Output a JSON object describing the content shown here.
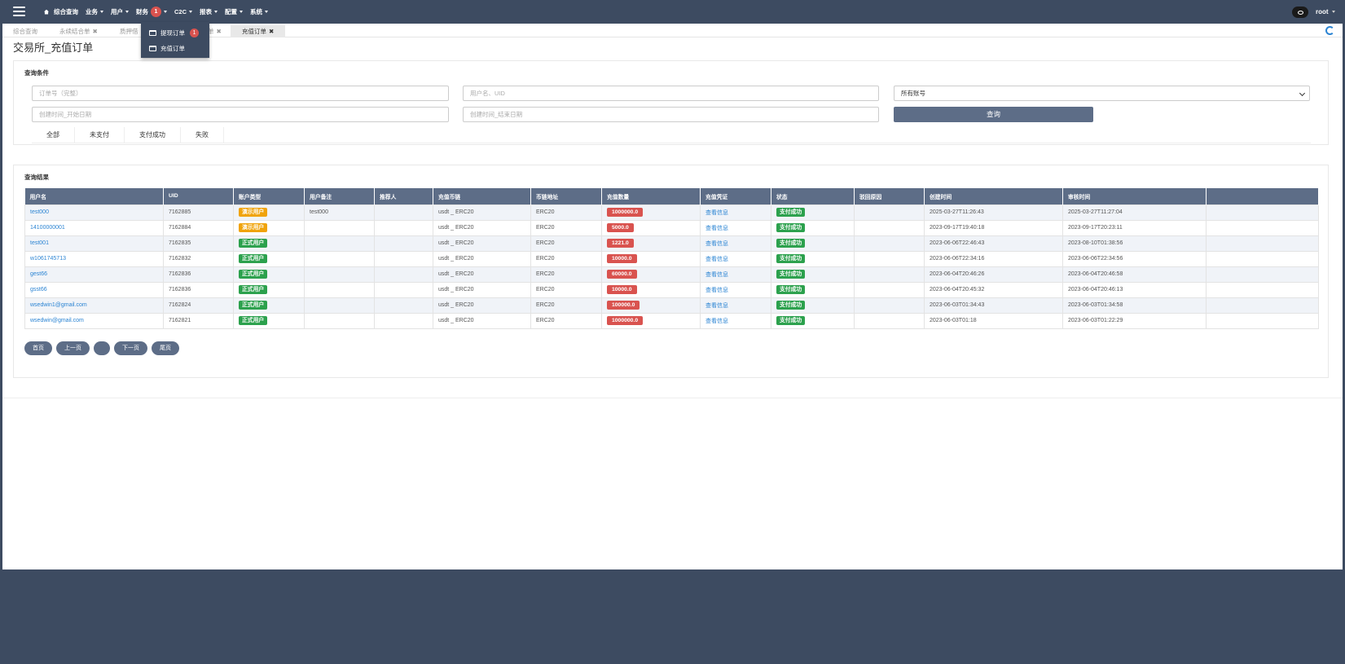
{
  "navbar": {
    "items": [
      {
        "label": "综合查询",
        "caret": false,
        "home": true
      },
      {
        "label": "业务",
        "caret": true
      },
      {
        "label": "用户",
        "caret": true
      },
      {
        "label": "财务",
        "caret": true,
        "badge": "1"
      },
      {
        "label": "C2C",
        "caret": true
      },
      {
        "label": "报表",
        "caret": true
      },
      {
        "label": "配置",
        "caret": true
      },
      {
        "label": "系统",
        "caret": true
      }
    ],
    "user": "root"
  },
  "finance_menu": {
    "items": [
      {
        "label": "提现订单",
        "badge": "1"
      },
      {
        "label": "充值订单"
      }
    ]
  },
  "tabs": {
    "items": [
      {
        "label": "综合查询",
        "close": ""
      },
      {
        "label": "永续结合单",
        "close": "✖"
      },
      {
        "label": "质押借",
        "close": ""
      },
      {
        "label": "充值订单",
        "close": "✖"
      }
    ],
    "hidden_tail": "单"
  },
  "page": {
    "title": "交易所_充值订单"
  },
  "query": {
    "title": "查询条件",
    "order_no_placeholder": "订单号（完整）",
    "user_placeholder": "用户名、UID",
    "account_select": "所有账号",
    "start_placeholder": "创建时间_开始日期",
    "end_placeholder": "创建时间_结束日期",
    "query_button": "查询",
    "filters": [
      "全部",
      "未支付",
      "支付成功",
      "失败"
    ]
  },
  "results": {
    "title": "查询结果",
    "columns": [
      "用户名",
      "UID",
      "账户类型",
      "用户备注",
      "推荐人",
      "充值币链",
      "币链地址",
      "充值数量",
      "充值凭证",
      "状态",
      "驳回原因",
      "创建时间",
      "审核时间",
      ""
    ],
    "rows": [
      {
        "username": "test000",
        "uid": "7162885",
        "type": "演示用户",
        "type_color": "orange",
        "remark": "test000",
        "referrer": "",
        "chain": "usdt _ ERC20",
        "address": "ERC20",
        "amount": "1000000.0",
        "voucher": "查看信息",
        "status": "支付成功",
        "reject": "",
        "created": "2025-03-27T11:26:43",
        "audited": "2025-03-27T11:27:04"
      },
      {
        "username": "14100000001",
        "uid": "7162884",
        "type": "演示用户",
        "type_color": "orange",
        "remark": "",
        "referrer": "",
        "chain": "usdt _ ERC20",
        "address": "ERC20",
        "amount": "5000.0",
        "voucher": "查看信息",
        "status": "支付成功",
        "reject": "",
        "created": "2023-09-17T19:40:18",
        "audited": "2023-09-17T20:23:11"
      },
      {
        "username": "test001",
        "uid": "7162835",
        "type": "正式用户",
        "type_color": "green",
        "remark": "",
        "referrer": "",
        "chain": "usdt _ ERC20",
        "address": "ERC20",
        "amount": "1221.0",
        "voucher": "查看信息",
        "status": "支付成功",
        "reject": "",
        "created": "2023-06-06T22:46:43",
        "audited": "2023-08-10T01:38:56"
      },
      {
        "username": "w1061745713",
        "uid": "7162832",
        "type": "正式用户",
        "type_color": "green",
        "remark": "",
        "referrer": "",
        "chain": "usdt _ ERC20",
        "address": "ERC20",
        "amount": "10000.0",
        "voucher": "查看信息",
        "status": "支付成功",
        "reject": "",
        "created": "2023-06-06T22:34:16",
        "audited": "2023-06-06T22:34:56"
      },
      {
        "username": "gest66",
        "uid": "7162836",
        "type": "正式用户",
        "type_color": "green",
        "remark": "",
        "referrer": "",
        "chain": "usdt _ ERC20",
        "address": "ERC20",
        "amount": "60000.0",
        "voucher": "查看信息",
        "status": "支付成功",
        "reject": "",
        "created": "2023-06-04T20:46:26",
        "audited": "2023-06-04T20:46:58"
      },
      {
        "username": "gsst66",
        "uid": "7162836",
        "type": "正式用户",
        "type_color": "green",
        "remark": "",
        "referrer": "",
        "chain": "usdt _ ERC20",
        "address": "ERC20",
        "amount": "10000.0",
        "voucher": "查看信息",
        "status": "支付成功",
        "reject": "",
        "created": "2023-06-04T20:45:32",
        "audited": "2023-06-04T20:46:13"
      },
      {
        "username": "wsedwin1@gmail.com",
        "uid": "7162824",
        "type": "正式用户",
        "type_color": "green",
        "remark": "",
        "referrer": "",
        "chain": "usdt _ ERC20",
        "address": "ERC20",
        "amount": "100000.0",
        "voucher": "查看信息",
        "status": "支付成功",
        "reject": "",
        "created": "2023-06-03T01:34:43",
        "audited": "2023-06-03T01:34:58"
      },
      {
        "username": "wsedwin@gmail.com",
        "uid": "7162821",
        "type": "正式用户",
        "type_color": "green",
        "remark": "",
        "referrer": "",
        "chain": "usdt _ ERC20",
        "address": "ERC20",
        "amount": "1000000.0",
        "voucher": "查看信息",
        "status": "支付成功",
        "reject": "",
        "created": "2023-06-03T01:18",
        "audited": "2023-06-03T01:22:29"
      }
    ]
  },
  "pager": [
    "首页",
    "上一页",
    "",
    "下一页",
    "尾页"
  ],
  "colors": {
    "navbar": "#3d4b61",
    "header": "#5d6d87",
    "link": "#2b84d3",
    "badge": "#d9534f",
    "success": "#2ca14d",
    "demo": "#f0a30a"
  }
}
